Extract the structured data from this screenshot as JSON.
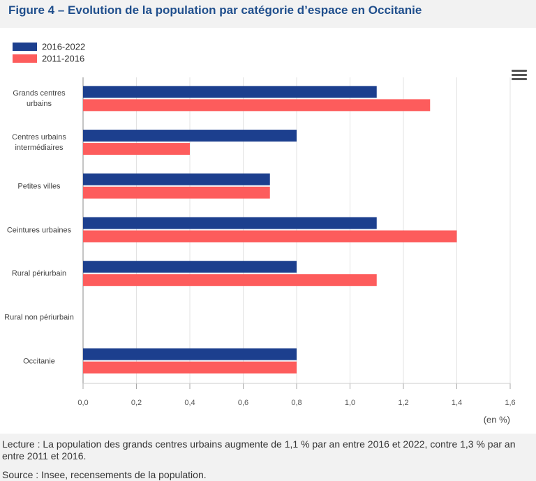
{
  "chart_data": {
    "type": "hbar",
    "title": "Figure 4 – Evolution de la population par catégorie d’espace en Occitanie",
    "categories": [
      "Grands centres urbains",
      "Centres urbains intermédiaires",
      "Petites villes",
      "Ceintures urbaines",
      "Rural périurbain",
      "Rural non périurbain",
      "Occitanie"
    ],
    "series": [
      {
        "name": "2016-2022",
        "color": "#1c3f8e",
        "values": [
          1.1,
          0.8,
          0.7,
          1.1,
          0.8,
          null,
          0.8
        ]
      },
      {
        "name": "2011-2016",
        "color": "#fd5c5c",
        "values": [
          1.3,
          0.4,
          0.7,
          1.4,
          1.1,
          null,
          0.8
        ]
      }
    ],
    "xlim": [
      0,
      1.6
    ],
    "xticks": [
      {
        "value": 0,
        "label": "0,0"
      },
      {
        "value": 0.2,
        "label": "0,2"
      },
      {
        "value": 0.4,
        "label": "0,4"
      },
      {
        "value": 0.6,
        "label": "0,6"
      },
      {
        "value": 0.8,
        "label": "0,8"
      },
      {
        "value": 1.0,
        "label": "1,0"
      },
      {
        "value": 1.2,
        "label": "1,2"
      },
      {
        "value": 1.4,
        "label": "1,4"
      },
      {
        "value": 1.6,
        "label": "1,6"
      }
    ],
    "x_label": "(en %)",
    "grid": true,
    "legend": "top-left",
    "notes": [
      "Lecture : La population des grands centres urbains augmente de 1,1 % par an entre 2016 et 2022, contre 1,3 % par an entre 2011 et 2016.",
      "Source : Insee, recensements de la population."
    ]
  }
}
